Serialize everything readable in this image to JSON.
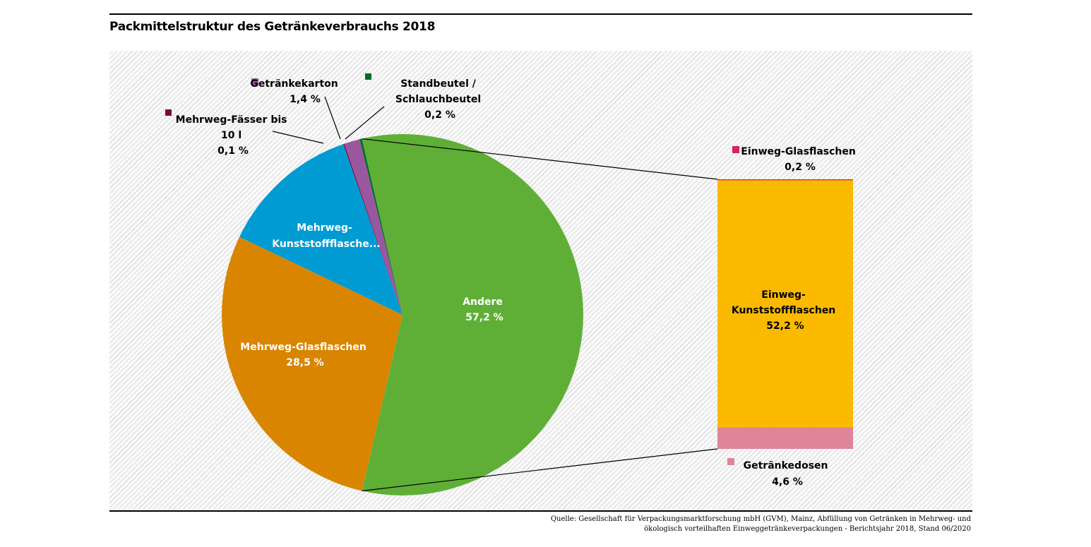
{
  "title": "Packmittelstruktur des Getränkeverbrauchs 2018",
  "source": {
    "line1": "Quelle: Gesellschaft für Verpackungsmarktforschung mbH (GVM), Mainz, Abfüllung von Getränken in Mehrweg- und",
    "line2": "ökologisch vorteilhaften Einweggetränkeverpackungen - Berichtsjahr 2018, Stand 06/2020"
  },
  "chart_data": {
    "type": "pie",
    "title": "Packmittelstruktur des Getränkeverbrauchs 2018",
    "subtype": "bar-of-pie",
    "unit": "%",
    "pie": [
      {
        "name": "Andere",
        "value": 57.2,
        "label": "57,2 %",
        "color": "#5faf37"
      },
      {
        "name": "Mehrweg-Glasflaschen",
        "value": 28.5,
        "label": "28,5 %",
        "color": "#d98500"
      },
      {
        "name": "Mehrweg-Kunststoffflasche...",
        "value": 12.6,
        "color": "#009bd3"
      },
      {
        "name": "Mehrweg-Fässer bis 10 l",
        "name_line1": "Mehrweg-Fässer bis",
        "name_line2": "10 l",
        "value": 0.1,
        "label": "0,1 %",
        "color": "#7a0a3c"
      },
      {
        "name": "Getränkekarton",
        "value": 1.4,
        "label": "1,4 %",
        "color": "#9a57a0"
      },
      {
        "name": "Standbeutel / Schlauchbeutel",
        "name_line1": "Standbeutel /",
        "name_line2": "Schlauchbeutel",
        "value": 0.2,
        "label": "0,2 %",
        "color": "#066b2a"
      }
    ],
    "bar": [
      {
        "name": "Einweg-Glasflaschen",
        "value": 0.2,
        "label": "0,2 %",
        "color": "#d5246a"
      },
      {
        "name": "Einweg-Kunststoffflaschen",
        "name_line1": "Einweg-",
        "name_line2": "Kunststoffflaschen",
        "value": 52.2,
        "label": "52,2 %",
        "color": "#fbba00"
      },
      {
        "name": "Getränkedosen",
        "value": 4.6,
        "label": "4,6 %",
        "color": "#de8598"
      }
    ],
    "legend": "inline-labels"
  }
}
